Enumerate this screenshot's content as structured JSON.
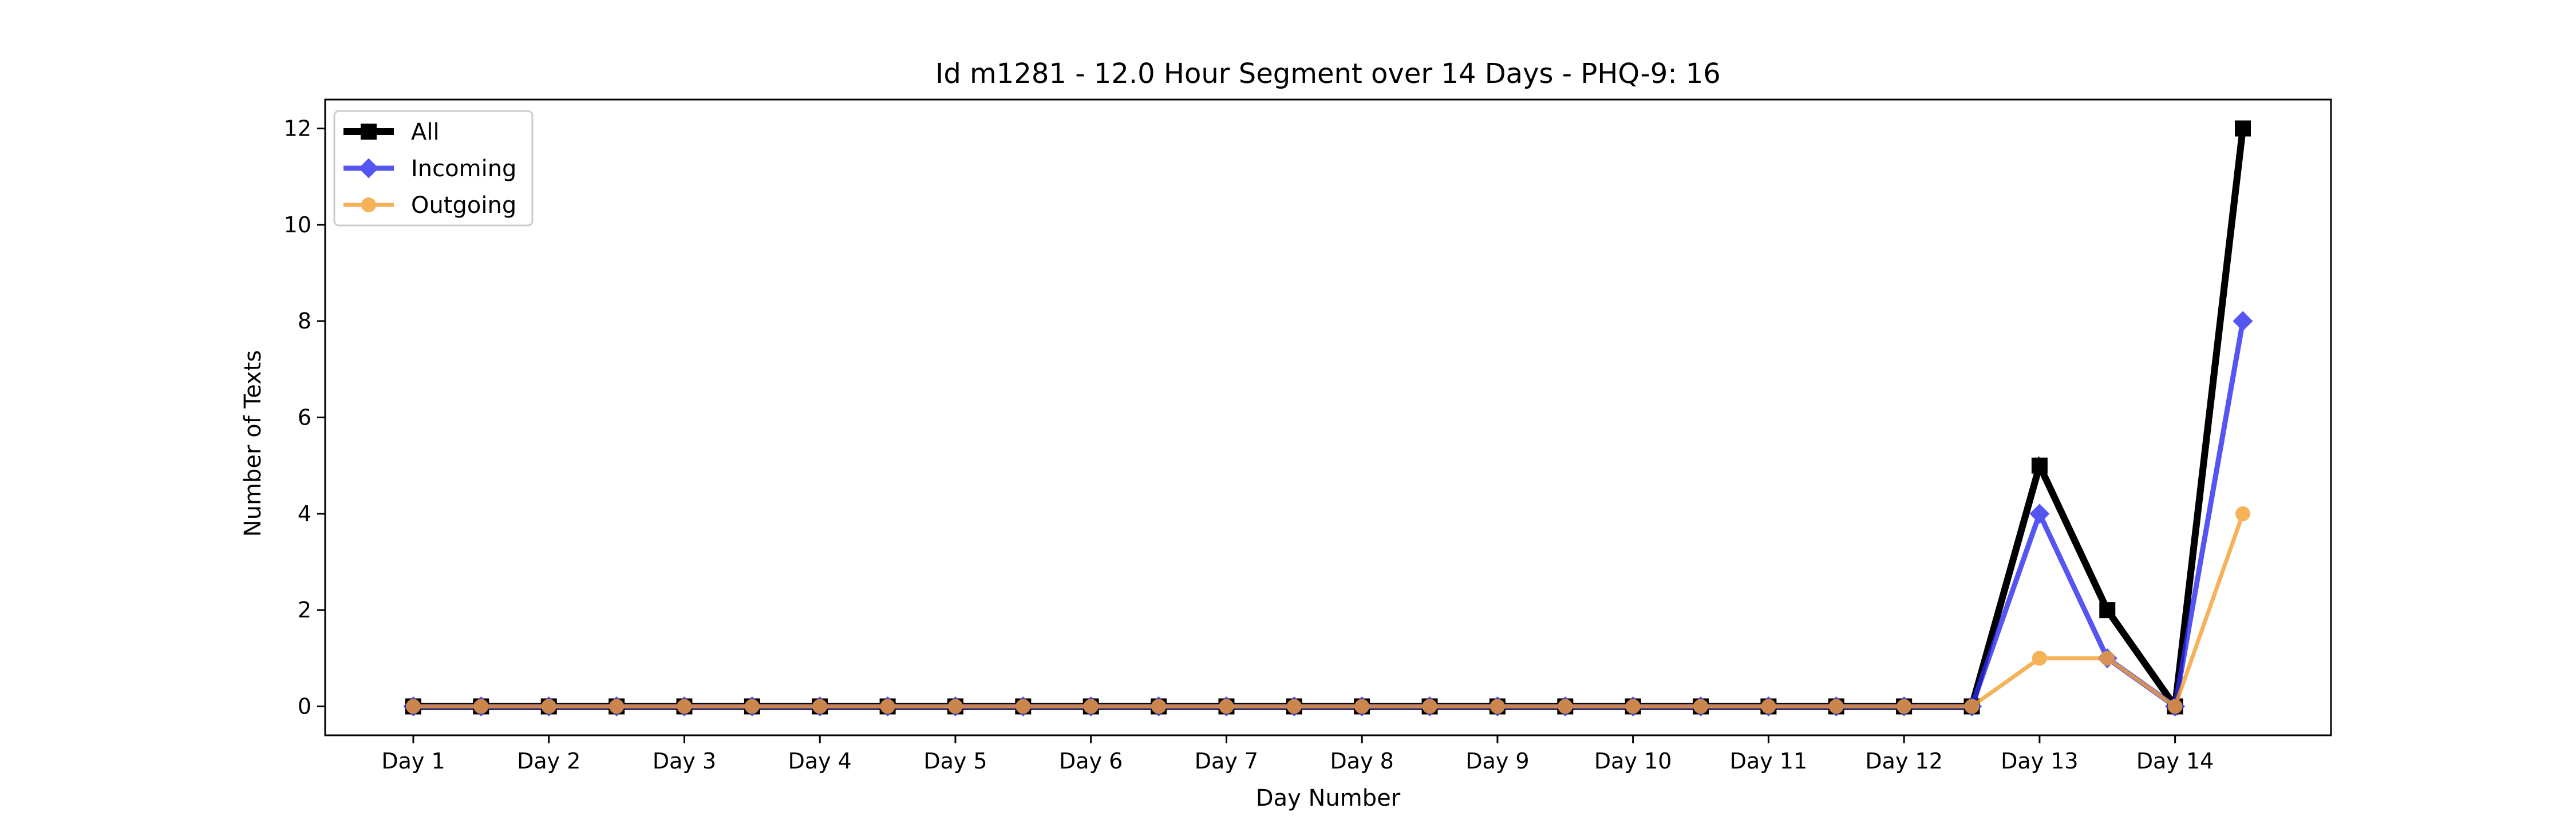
{
  "chart_data": {
    "type": "line",
    "title": "Id m1281 - 12.0 Hour Segment over 14 Days - PHQ-9: 16",
    "xlabel": "Day Number",
    "ylabel": "Number of Texts",
    "x_tick_labels": [
      "Day 1",
      "Day 2",
      "Day 3",
      "Day 4",
      "Day 5",
      "Day 6",
      "Day 7",
      "Day 8",
      "Day 9",
      "Day 10",
      "Day 11",
      "Day 12",
      "Day 13",
      "Day 14"
    ],
    "x_points": 28,
    "ylim": [
      -0.6,
      12.6
    ],
    "yticks": [
      0,
      2,
      4,
      6,
      8,
      10,
      12
    ],
    "grid": false,
    "legend_placement": "top-left",
    "series": [
      {
        "name": "All",
        "color": "#000000",
        "marker": "square",
        "values": [
          0,
          0,
          0,
          0,
          0,
          0,
          0,
          0,
          0,
          0,
          0,
          0,
          0,
          0,
          0,
          0,
          0,
          0,
          0,
          0,
          0,
          0,
          0,
          0,
          5,
          2,
          0,
          12
        ]
      },
      {
        "name": "Incoming",
        "color": "#2b2bf0",
        "marker": "diamond",
        "values": [
          0,
          0,
          0,
          0,
          0,
          0,
          0,
          0,
          0,
          0,
          0,
          0,
          0,
          0,
          0,
          0,
          0,
          0,
          0,
          0,
          0,
          0,
          0,
          0,
          4,
          1,
          0,
          8
        ]
      },
      {
        "name": "Outgoing",
        "color": "#f5a030",
        "marker": "circle",
        "values": [
          0,
          0,
          0,
          0,
          0,
          0,
          0,
          0,
          0,
          0,
          0,
          0,
          0,
          0,
          0,
          0,
          0,
          0,
          0,
          0,
          0,
          0,
          0,
          0,
          1,
          1,
          0,
          4
        ]
      }
    ]
  }
}
